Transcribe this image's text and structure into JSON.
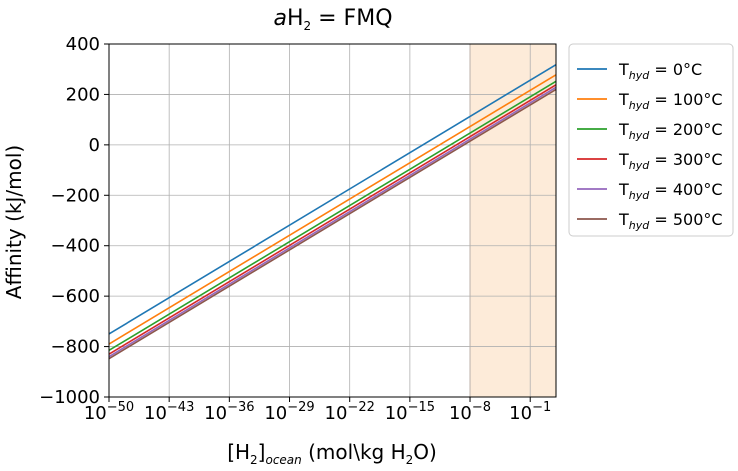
{
  "chart_data": {
    "type": "line",
    "title": {
      "prefix": "a",
      "main": "H",
      "sub": "2",
      "rest": " = FMQ"
    },
    "xlabel": {
      "pre": "[H",
      "sub1": "2",
      "mid": "]",
      "sub2": "ocean",
      "post": " (mol\\kg H",
      "sub3": "2",
      "end": "O)"
    },
    "ylabel": "Affinity (kJ/mol)",
    "x_scale": "log",
    "xlim_exponent": [
      -50,
      2
    ],
    "ylim": [
      -1000,
      400
    ],
    "x_ticks_exponent": [
      -50,
      -43,
      -36,
      -29,
      -22,
      -15,
      -8,
      -1
    ],
    "x_tick_base": "10",
    "x_tick_exponent_labels": [
      "−50",
      "−43",
      "−36",
      "−29",
      "−22",
      "−15",
      "−8",
      "−1"
    ],
    "y_ticks": [
      -1000,
      -800,
      -600,
      -400,
      -200,
      0,
      200,
      400
    ],
    "y_tick_labels": [
      "−1000",
      "−800",
      "−600",
      "−400",
      "−200",
      "0",
      "200",
      "400"
    ],
    "grid": true,
    "shaded_region_exponent": [
      -8,
      2
    ],
    "shaded_color": "#fdebd9",
    "legend_position": "outside-right-top",
    "series": [
      {
        "name": {
          "pre": "T",
          "sub": "hyd",
          "post": " = 0°C"
        },
        "color": "#1f77b4",
        "x_exponent": [
          -50,
          2
        ],
        "y": [
          -750,
          318
        ]
      },
      {
        "name": {
          "pre": "T",
          "sub": "hyd",
          "post": " = 100°C"
        },
        "color": "#ff7f0e",
        "x_exponent": [
          -50,
          2
        ],
        "y": [
          -790,
          278
        ]
      },
      {
        "name": {
          "pre": "T",
          "sub": "hyd",
          "post": " = 200°C"
        },
        "color": "#2ca02c",
        "x_exponent": [
          -50,
          2
        ],
        "y": [
          -815,
          252
        ]
      },
      {
        "name": {
          "pre": "T",
          "sub": "hyd",
          "post": " = 300°C"
        },
        "color": "#d62728",
        "x_exponent": [
          -50,
          2
        ],
        "y": [
          -830,
          238
        ]
      },
      {
        "name": {
          "pre": "T",
          "sub": "hyd",
          "post": " = 400°C"
        },
        "color": "#9467bd",
        "x_exponent": [
          -50,
          2
        ],
        "y": [
          -840,
          228
        ]
      },
      {
        "name": {
          "pre": "T",
          "sub": "hyd",
          "post": " = 500°C"
        },
        "color": "#8c564b",
        "x_exponent": [
          -50,
          2
        ],
        "y": [
          -848,
          220
        ]
      }
    ]
  }
}
